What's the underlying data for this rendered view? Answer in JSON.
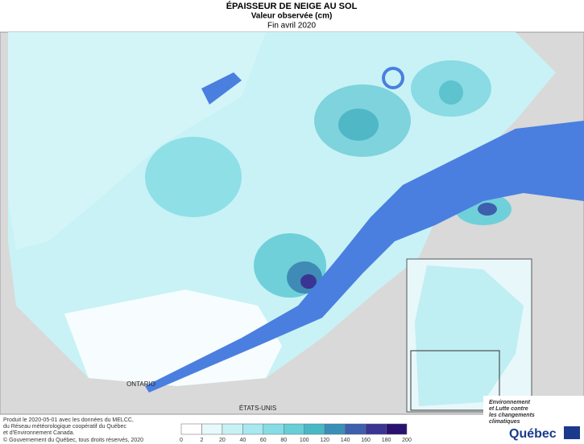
{
  "header": {
    "title": "ÉPAISSEUR DE NEIGE AU SOL",
    "subtitle": "Valeur observée (cm)",
    "date": "Fin avril 2020"
  },
  "map": {
    "labels": [
      "ONTARIO",
      "ÉTATS-UNIS"
    ]
  },
  "credits": [
    "Produit le 2020-05-01 avec les données du MELCC,",
    "du Réseau météorologique coopératif du Québec",
    "et d'Environnement Canada.",
    "© Gouvernement du Québec, tous droits réservés, 2020"
  ],
  "legend": {
    "bins": [
      0,
      2,
      20,
      40,
      60,
      80,
      100,
      120,
      140,
      160,
      180,
      200
    ],
    "colors": [
      "#ffffff",
      "#e6f9fb",
      "#c8f1f6",
      "#a8e8f0",
      "#86dde6",
      "#66cfd8",
      "#48b8c6",
      "#3a8fb8",
      "#3d5fae",
      "#3a3593",
      "#2a1070"
    ]
  },
  "logo": {
    "ministry": [
      "Environnement",
      "et Lutte contre",
      "les changements",
      "climatiques"
    ],
    "name": "Québec"
  }
}
